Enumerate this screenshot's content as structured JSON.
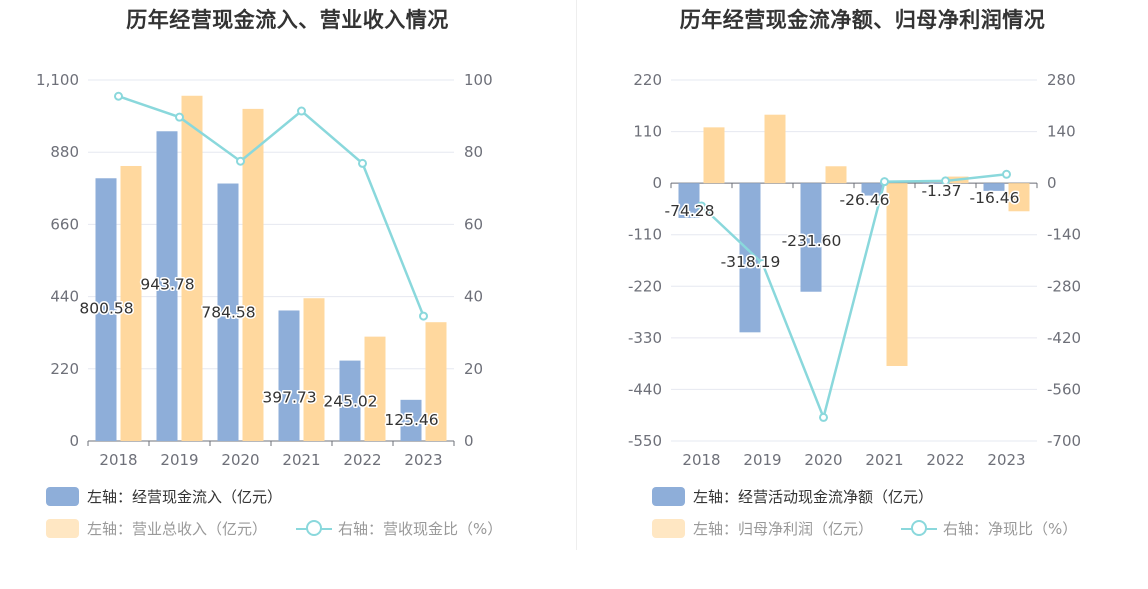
{
  "colors": {
    "bar_blue": "#8eaed9",
    "bar_orange": "#ffd89e",
    "line": "#8ad8dc",
    "grid": "#e6e8f0",
    "axis": "#6e7079"
  },
  "chart_data": [
    {
      "type": "bar",
      "title": "历年经营现金流入、营业收入情况",
      "categories": [
        "2018",
        "2019",
        "2020",
        "2021",
        "2022",
        "2023"
      ],
      "left_ticks": [
        "1,100",
        "880",
        "660",
        "440",
        "220",
        "0"
      ],
      "right_ticks": [
        "100",
        "80",
        "60",
        "40",
        "20",
        "0"
      ],
      "ylim_left": [
        0,
        1100
      ],
      "ylim_right": [
        0,
        100
      ],
      "series": [
        {
          "name": "左轴：经营现金流入（亿元）",
          "axis": "left",
          "kind": "bar",
          "values": [
            800.58,
            943.78,
            784.58,
            397.73,
            245.02,
            125.46
          ],
          "labels": [
            "800.58",
            "943.78",
            "784.58",
            "397.73",
            "245.02",
            "125.46"
          ]
        },
        {
          "name": "左轴：营业总收入（亿元）",
          "axis": "left",
          "kind": "bar",
          "values": [
            838,
            1052,
            1012,
            435,
            318,
            362
          ]
        },
        {
          "name": "右轴：营收现金比（%）",
          "axis": "right",
          "kind": "line",
          "values": [
            95.5,
            89.7,
            77.5,
            91.4,
            76.9,
            34.6
          ]
        }
      ],
      "grid": true,
      "legend": "bottom"
    },
    {
      "type": "bar",
      "title": "历年经营现金流净额、归母净利润情况",
      "categories": [
        "2018",
        "2019",
        "2020",
        "2021",
        "2022",
        "2023"
      ],
      "left_ticks": [
        "220",
        "110",
        "0",
        "-110",
        "-220",
        "-330",
        "-440",
        "-550"
      ],
      "right_ticks": [
        "280",
        "140",
        "0",
        "-140",
        "-280",
        "-420",
        "-560",
        "-700"
      ],
      "ylim_left": [
        -550,
        220
      ],
      "ylim_right": [
        -700,
        280
      ],
      "series": [
        {
          "name": "左轴：经营活动现金流净额（亿元）",
          "axis": "left",
          "kind": "bar",
          "values": [
            -74.28,
            -318.19,
            -231.6,
            -26.46,
            -1.37,
            -16.46
          ],
          "labels": [
            "-74.28",
            "-318.19",
            "-231.60",
            "-26.46",
            "-1.37",
            "-16.46"
          ]
        },
        {
          "name": "左轴：归母净利润（亿元）",
          "axis": "left",
          "kind": "bar",
          "values": [
            119,
            146,
            36,
            -390,
            14,
            -60
          ]
        },
        {
          "name": "右轴：净现比（%）",
          "axis": "right",
          "kind": "line",
          "values": [
            -62,
            -218,
            -636,
            4,
            6,
            24
          ]
        }
      ],
      "grid": true,
      "legend": "bottom"
    }
  ]
}
